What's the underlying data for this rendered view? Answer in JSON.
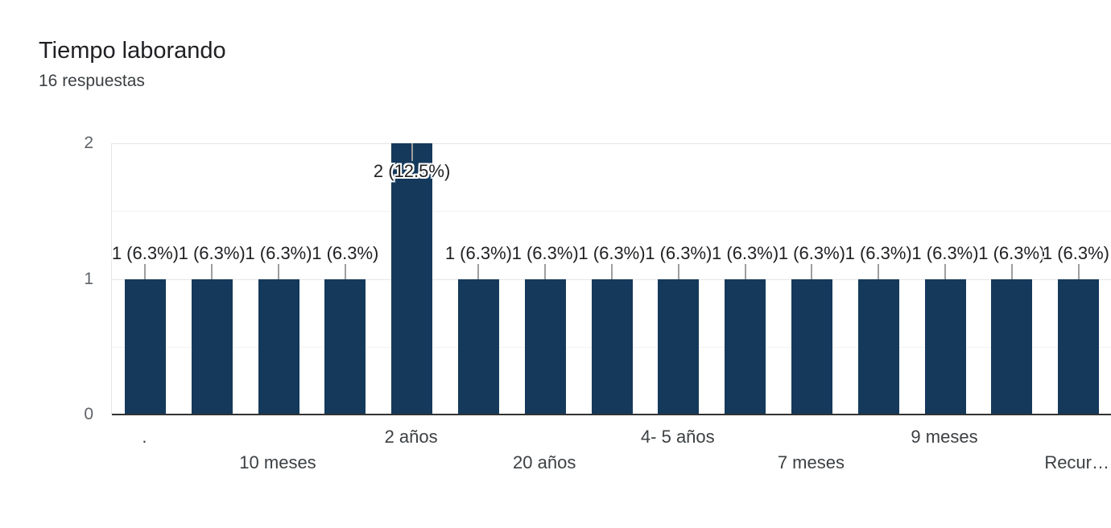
{
  "header": {
    "title": "Tiempo laborando",
    "subtitle": "16 respuestas"
  },
  "chart_data": {
    "type": "bar",
    "title": "Tiempo laborando",
    "subtitle": "16 respuestas",
    "categories": [
      ".",
      "",
      "10 meses",
      "",
      "2 años",
      "",
      "20 años",
      "",
      "4- 5 años",
      "",
      "7 meses",
      "",
      "9 meses",
      "",
      "Recur…"
    ],
    "values": [
      1,
      1,
      1,
      1,
      2,
      1,
      1,
      1,
      1,
      1,
      1,
      1,
      1,
      1,
      1
    ],
    "value_labels": [
      "1 (6.3%)",
      "1 (6.3%)",
      "1 (6.3%)",
      "1 (6.3%)",
      "2 (12.5%)",
      "1 (6.3%)",
      "1 (6.3%)",
      "1 (6.3%)",
      "1 (6.3%)",
      "1 (6.3%)",
      "1 (6.3%)",
      "1 (6.3%)",
      "1 (6.3%)",
      "1 (6.3%)",
      "1 (6.3%)"
    ],
    "xlabel": "",
    "ylabel": "",
    "ylim": [
      0,
      2
    ],
    "y_ticks": [
      0,
      1,
      2
    ],
    "grid": "horizontal major at integers, minor at halves",
    "legend": "none",
    "x_label_layout": "labels on odd bars only, alternating two rows",
    "colors": {
      "bar": "#14395B",
      "grid_major": "#e6e6e6",
      "grid_minor": "#f3f3f3",
      "axis_line": "#333333",
      "leader_line": "#9e9e9e",
      "value_label_text": "#202124",
      "y_tick_text": "#5f6368",
      "x_label_text": "#3c4043",
      "title_text": "#202124",
      "subtitle_text": "#3c4043",
      "background": "#ffffff"
    }
  }
}
